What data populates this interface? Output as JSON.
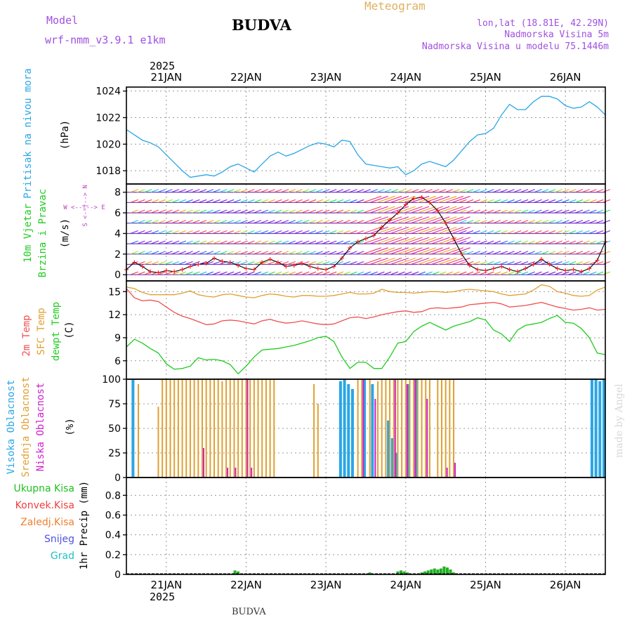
{
  "header": {
    "model_label": "Model",
    "model_name": "wrf-nmm_v3.9.1 e1km",
    "title": "BUDVA",
    "product": "Meteogram",
    "lonlat": "lon,lat (18.81E, 42.29N)",
    "elevation": "Nadmorska Visina 5m",
    "model_elevation": "Nadmorska Visina u modelu 75.1446m",
    "footer": "BUDVA",
    "credit": "made by Angel"
  },
  "colors": {
    "pressure": "#2aa6e6",
    "temp2m": "#f05050",
    "sfc": "#e0a030",
    "dewpt": "#20cc20",
    "cloud_high": "#2aa6e6",
    "cloud_mid": "#e0a030",
    "cloud_low": "#d020d0",
    "precip": "#20b020",
    "wind_obs": "#ff2020",
    "wind_model": "#000000",
    "model_text": "#a050e0",
    "title_text": "#e0b060"
  },
  "time_axis": {
    "year": "2025",
    "days": [
      "21JAN",
      "22JAN",
      "23JAN",
      "24JAN",
      "25JAN",
      "26JAN"
    ]
  },
  "chart_data": [
    {
      "type": "line",
      "panel": "pressure",
      "ylabel_main": "Pritisak na nivou mora",
      "ylabel_unit": "(hPa)",
      "ylim": [
        1017,
        1024.3
      ],
      "yticks": [
        "1018",
        "1020",
        "1022",
        "1024"
      ],
      "x_days": [
        20.5,
        20.6,
        20.7,
        20.8,
        20.9,
        21.0,
        21.1,
        21.2,
        21.3,
        21.4,
        21.5,
        21.6,
        21.7,
        21.8,
        21.9,
        22.0,
        22.1,
        22.2,
        22.3,
        22.4,
        22.5,
        22.6,
        22.7,
        22.8,
        22.9,
        23.0,
        23.1,
        23.2,
        23.3,
        23.4,
        23.5,
        23.6,
        23.7,
        23.8,
        23.9,
        24.0,
        24.1,
        24.2,
        24.3,
        24.4,
        24.5,
        24.6,
        24.7,
        24.8,
        24.9,
        25.0,
        25.1,
        25.2,
        25.3,
        25.4,
        25.5,
        25.6,
        25.7,
        25.8,
        25.9,
        26.0,
        26.1,
        26.2,
        26.3,
        26.4,
        26.5
      ],
      "values": [
        1021.1,
        1020.7,
        1020.3,
        1020.1,
        1019.8,
        1019.2,
        1018.6,
        1018.0,
        1017.5,
        1017.6,
        1017.7,
        1017.6,
        1017.9,
        1018.3,
        1018.5,
        1018.2,
        1017.9,
        1018.5,
        1019.1,
        1019.4,
        1019.1,
        1019.3,
        1019.6,
        1019.9,
        1020.1,
        1020.0,
        1019.8,
        1020.3,
        1020.2,
        1019.2,
        1018.5,
        1018.4,
        1018.3,
        1018.2,
        1018.3,
        1017.7,
        1018.0,
        1018.5,
        1018.7,
        1018.5,
        1018.3,
        1018.8,
        1019.5,
        1020.2,
        1020.7,
        1020.8,
        1021.2,
        1022.2,
        1023.0,
        1022.6,
        1022.6,
        1023.2,
        1023.6,
        1023.6,
        1023.4,
        1022.9,
        1022.7,
        1022.8,
        1023.2,
        1022.8,
        1022.2
      ]
    },
    {
      "type": "line",
      "panel": "wind",
      "ylabel_main": "10m Vjetar",
      "ylabel_sub": "Brzina i Pravac",
      "ylabel_unit": "(m/s)",
      "compass": "W <--|--> E",
      "compass_v": "S <--|--> N",
      "ylim": [
        -0.6,
        8.8
      ],
      "yticks": [
        "0",
        "2",
        "4",
        "6",
        "8"
      ],
      "barb_rows": [
        0,
        1,
        2,
        3,
        4,
        5,
        6,
        7,
        8
      ],
      "x_days": [
        20.5,
        20.6,
        20.7,
        20.8,
        20.9,
        21.0,
        21.1,
        21.2,
        21.3,
        21.4,
        21.5,
        21.6,
        21.7,
        21.8,
        21.9,
        22.0,
        22.1,
        22.2,
        22.3,
        22.4,
        22.5,
        22.6,
        22.7,
        22.8,
        22.9,
        23.0,
        23.1,
        23.2,
        23.3,
        23.4,
        23.5,
        23.6,
        23.7,
        23.8,
        23.9,
        24.0,
        24.1,
        24.2,
        24.3,
        24.4,
        24.5,
        24.6,
        24.7,
        24.8,
        24.9,
        25.0,
        25.1,
        25.2,
        25.3,
        25.4,
        25.5,
        25.6,
        25.7,
        25.8,
        25.9,
        26.0,
        26.1,
        26.2,
        26.3,
        26.4,
        26.5
      ],
      "values": [
        0.5,
        1.2,
        0.8,
        0.3,
        0.2,
        0.4,
        0.3,
        0.5,
        0.8,
        1.0,
        1.1,
        1.6,
        1.3,
        1.2,
        0.9,
        0.6,
        0.5,
        1.2,
        1.5,
        1.2,
        0.8,
        0.9,
        1.1,
        0.8,
        0.6,
        0.5,
        0.8,
        1.6,
        2.6,
        3.2,
        3.5,
        3.8,
        4.6,
        5.3,
        6.0,
        6.8,
        7.4,
        7.5,
        7.0,
        6.2,
        5.0,
        3.5,
        2.0,
        0.9,
        0.5,
        0.4,
        0.6,
        0.8,
        0.5,
        0.3,
        0.6,
        1.0,
        1.5,
        1.0,
        0.6,
        0.4,
        0.5,
        0.3,
        0.6,
        1.4,
        3.2
      ]
    },
    {
      "type": "line",
      "panel": "temperature",
      "ylabel_temp": "2m Temp",
      "ylabel_sfc": "SFC Temp",
      "ylabel_dew": "dewpt Temp",
      "ylabel_unit": "(C)",
      "ylim": [
        3.6,
        16.4
      ],
      "yticks": [
        "6",
        "9",
        "12",
        "15"
      ],
      "x_days": [
        20.5,
        20.6,
        20.7,
        20.8,
        20.9,
        21.0,
        21.1,
        21.2,
        21.3,
        21.4,
        21.5,
        21.6,
        21.7,
        21.8,
        21.9,
        22.0,
        22.1,
        22.2,
        22.3,
        22.4,
        22.5,
        22.6,
        22.7,
        22.8,
        22.9,
        23.0,
        23.1,
        23.2,
        23.3,
        23.4,
        23.5,
        23.6,
        23.7,
        23.8,
        23.9,
        24.0,
        24.1,
        24.2,
        24.3,
        24.4,
        24.5,
        24.6,
        24.7,
        24.8,
        24.9,
        25.0,
        25.1,
        25.2,
        25.3,
        25.4,
        25.5,
        25.6,
        25.7,
        25.8,
        25.9,
        26.0,
        26.1,
        26.2,
        26.3,
        26.4,
        26.5
      ],
      "series": [
        {
          "name": "2m Temp",
          "values": [
            15.4,
            14.2,
            13.8,
            13.9,
            13.7,
            13.0,
            12.3,
            11.8,
            11.5,
            11.1,
            10.7,
            10.8,
            11.2,
            11.3,
            11.2,
            11.0,
            10.8,
            11.2,
            11.4,
            11.1,
            10.9,
            11.0,
            11.2,
            11.0,
            10.8,
            10.7,
            10.8,
            11.2,
            11.6,
            11.7,
            11.5,
            11.7,
            12.0,
            12.2,
            12.4,
            12.5,
            12.3,
            12.4,
            12.8,
            12.9,
            12.8,
            12.9,
            13.0,
            13.3,
            13.4,
            13.5,
            13.6,
            13.4,
            13.0,
            13.1,
            13.2,
            13.4,
            13.6,
            13.3,
            13.0,
            12.8,
            12.6,
            12.7,
            12.9,
            12.6,
            12.7
          ]
        },
        {
          "name": "SFC Temp",
          "values": [
            15.6,
            15.4,
            14.9,
            14.6,
            14.6,
            14.6,
            14.6,
            14.8,
            15.1,
            14.6,
            14.4,
            14.3,
            14.6,
            14.7,
            14.5,
            14.3,
            14.2,
            14.5,
            14.7,
            14.6,
            14.4,
            14.3,
            14.5,
            14.5,
            14.4,
            14.4,
            14.5,
            14.7,
            14.9,
            14.7,
            14.7,
            14.8,
            15.3,
            15.0,
            14.9,
            14.9,
            14.8,
            14.9,
            15.0,
            15.0,
            14.9,
            15.0,
            15.2,
            15.3,
            15.2,
            15.1,
            15.0,
            14.7,
            14.5,
            14.6,
            14.7,
            15.2,
            15.9,
            15.7,
            15.0,
            14.8,
            14.5,
            14.4,
            14.5,
            15.2,
            15.6
          ]
        },
        {
          "name": "dewpt Temp",
          "values": [
            7.8,
            8.8,
            8.3,
            7.6,
            7.0,
            5.6,
            4.9,
            5.0,
            5.3,
            6.4,
            6.1,
            6.2,
            6.0,
            5.5,
            4.3,
            5.3,
            6.5,
            7.4,
            7.5,
            7.6,
            7.8,
            8.0,
            8.3,
            8.6,
            9.0,
            9.2,
            8.5,
            6.5,
            5.0,
            5.8,
            5.8,
            5.0,
            5.0,
            6.5,
            8.3,
            8.5,
            9.8,
            10.5,
            11.0,
            10.5,
            10.0,
            10.5,
            10.8,
            11.1,
            11.6,
            11.3,
            10.0,
            9.5,
            8.5,
            10.0,
            10.6,
            10.8,
            11.0,
            11.5,
            11.9,
            11.0,
            10.9,
            10.2,
            9.0,
            7.0,
            6.8
          ]
        }
      ]
    },
    {
      "type": "bar",
      "panel": "cloud",
      "ylabel_high": "Visoka Oblacnost",
      "ylabel_mid": "Srednja Oblacnost",
      "ylabel_low": "Niska Oblacnost",
      "ylabel_unit": "(%)",
      "ylim": [
        0,
        100
      ],
      "yticks": [
        "0",
        "25",
        "50",
        "75",
        "100"
      ],
      "x_days": [
        20.6,
        20.65,
        20.9,
        20.95,
        21.0,
        21.05,
        21.1,
        21.15,
        21.2,
        21.25,
        21.3,
        21.35,
        21.4,
        21.45,
        21.5,
        21.55,
        21.6,
        21.65,
        21.7,
        21.75,
        21.8,
        21.85,
        21.9,
        21.95,
        22.0,
        22.05,
        22.1,
        22.15,
        22.2,
        22.25,
        22.3,
        22.35,
        22.8,
        22.85,
        22.9,
        23.2,
        23.25,
        23.3,
        23.35,
        23.4,
        23.45,
        23.5,
        23.55,
        23.6,
        23.65,
        23.7,
        23.75,
        23.8,
        23.85,
        23.9,
        23.95,
        24.0,
        24.05,
        24.1,
        24.15,
        24.2,
        24.25,
        24.3,
        24.35,
        24.4,
        24.45,
        24.5,
        24.55,
        24.6,
        26.35,
        26.4,
        26.45,
        26.5
      ],
      "series": [
        {
          "name": "Visoka Oblacnost",
          "values": [
            100,
            0,
            0,
            0,
            0,
            0,
            0,
            0,
            0,
            0,
            0,
            0,
            0,
            0,
            0,
            0,
            0,
            0,
            0,
            0,
            0,
            0,
            0,
            0,
            0,
            0,
            0,
            0,
            0,
            0,
            0,
            0,
            0,
            0,
            0,
            98,
            100,
            95,
            90,
            0,
            0,
            100,
            0,
            95,
            0,
            0,
            0,
            58,
            40,
            25,
            0,
            0,
            95,
            0,
            100,
            0,
            0,
            0,
            0,
            0,
            0,
            0,
            0,
            0,
            100,
            100,
            98,
            100
          ],
          "source": "visible cloud bars"
        },
        {
          "name": "Srednja Oblacnost",
          "values": [
            0,
            95,
            72,
            100,
            100,
            100,
            100,
            100,
            100,
            100,
            100,
            100,
            100,
            100,
            100,
            100,
            100,
            100,
            98,
            100,
            100,
            100,
            100,
            100,
            100,
            100,
            100,
            100,
            100,
            100,
            100,
            100,
            0,
            95,
            75,
            0,
            0,
            0,
            0,
            100,
            100,
            0,
            100,
            0,
            98,
            100,
            100,
            100,
            100,
            100,
            100,
            100,
            100,
            100,
            100,
            100,
            100,
            100,
            0,
            100,
            100,
            100,
            100,
            100,
            0,
            0,
            0,
            0
          ]
        },
        {
          "name": "Niska Oblacnost",
          "values": [
            0,
            0,
            0,
            0,
            0,
            0,
            0,
            0,
            0,
            0,
            0,
            0,
            0,
            30,
            0,
            0,
            0,
            0,
            0,
            10,
            0,
            10,
            0,
            0,
            100,
            10,
            0,
            0,
            0,
            0,
            0,
            0,
            0,
            0,
            0,
            0,
            0,
            0,
            0,
            0,
            100,
            0,
            0,
            80,
            0,
            0,
            0,
            0,
            100,
            0,
            0,
            95,
            0,
            100,
            0,
            0,
            80,
            0,
            0,
            0,
            0,
            10,
            0,
            15,
            0,
            0,
            0,
            0
          ]
        }
      ]
    },
    {
      "type": "bar",
      "panel": "precip",
      "legend": [
        "Ukupna Kisa",
        "Konvek.Kisa",
        "Zaledj.Kisa",
        "Snijeg",
        "Grad"
      ],
      "legend_colors": [
        "#20c020",
        "#f04040",
        "#f08030",
        "#5050e0",
        "#20c0c0"
      ],
      "ylabel_unit": "1hr Precip (mm)",
      "ylim": [
        0,
        0.98
      ],
      "yticks": [
        "0",
        "0.2",
        "0.4",
        "0.6",
        "0.8"
      ],
      "x_days": [
        21.86,
        21.9,
        23.0,
        23.55,
        23.9,
        23.94,
        23.98,
        24.02,
        24.2,
        24.24,
        24.28,
        24.32,
        24.36,
        24.4,
        24.44,
        24.48,
        24.52,
        24.56,
        24.6
      ],
      "values": [
        0.04,
        0.03,
        0.01,
        0.02,
        0.03,
        0.04,
        0.03,
        0.02,
        0.02,
        0.03,
        0.04,
        0.05,
        0.06,
        0.05,
        0.06,
        0.08,
        0.07,
        0.05,
        0.02
      ]
    }
  ]
}
